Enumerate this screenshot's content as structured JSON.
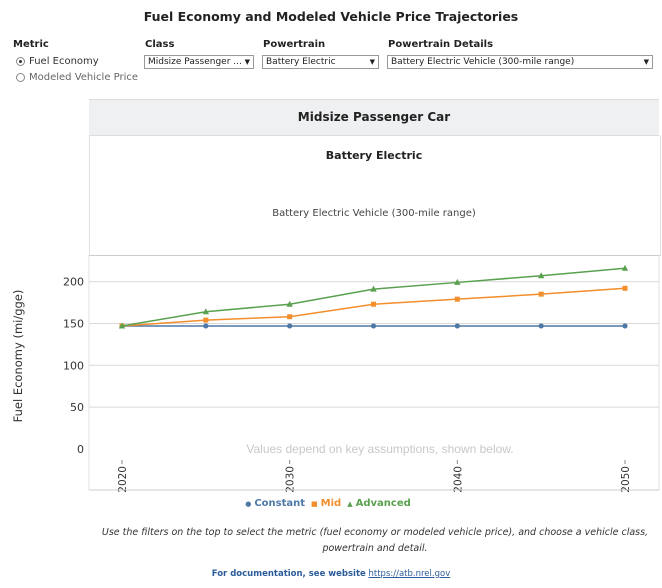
{
  "page_title": "Fuel Economy and Modeled Vehicle Price Trajectories",
  "filters": {
    "metric": {
      "label": "Metric",
      "options": [
        "Fuel Economy",
        "Modeled Vehicle Price"
      ],
      "selected": "Fuel Economy"
    },
    "class": {
      "label": "Class",
      "value": "Midsize Passenger ..."
    },
    "powertrain": {
      "label": "Powertrain",
      "value": "Battery Electric"
    },
    "powertrain_details": {
      "label": "Powertrain Details",
      "value": "Battery Electric Vehicle (300-mile range)"
    }
  },
  "panel": {
    "class_header": "Midsize Passenger Car",
    "powertrain_header": "Battery Electric",
    "details_header": "Battery Electric Vehicle (300-mile range)"
  },
  "chart_data": {
    "type": "line",
    "ylabel": "Fuel Economy (mi/gge)",
    "xlabel": "",
    "x": [
      2020,
      2025,
      2030,
      2035,
      2040,
      2045,
      2050
    ],
    "x_tick_labels": [
      "2020",
      "2030",
      "2040",
      "2050"
    ],
    "y_ticks": [
      0,
      50,
      100,
      150,
      200
    ],
    "ylim": [
      0,
      230
    ],
    "grid": "horizontal",
    "watermark": "Values depend on key assumptions, shown below.",
    "series": [
      {
        "name": "Constant",
        "color": "#4e79a7",
        "marker": "circle",
        "values": [
          147,
          147,
          147,
          147,
          147,
          147,
          147
        ]
      },
      {
        "name": "Mid",
        "color": "#f28e2b",
        "marker": "square",
        "values": [
          147,
          154,
          158,
          173,
          179,
          185,
          192
        ]
      },
      {
        "name": "Advanced",
        "color": "#59a14f",
        "marker": "triangle",
        "values": [
          147,
          164,
          173,
          191,
          199,
          207,
          216
        ]
      }
    ]
  },
  "footnote": "Use the filters on the top to select the metric (fuel economy or modeled vehicle price), and choose a vehicle class, powertrain and detail.",
  "documentation": {
    "label": "For documentation, see website",
    "link": "https://atb.nrel.gov"
  }
}
